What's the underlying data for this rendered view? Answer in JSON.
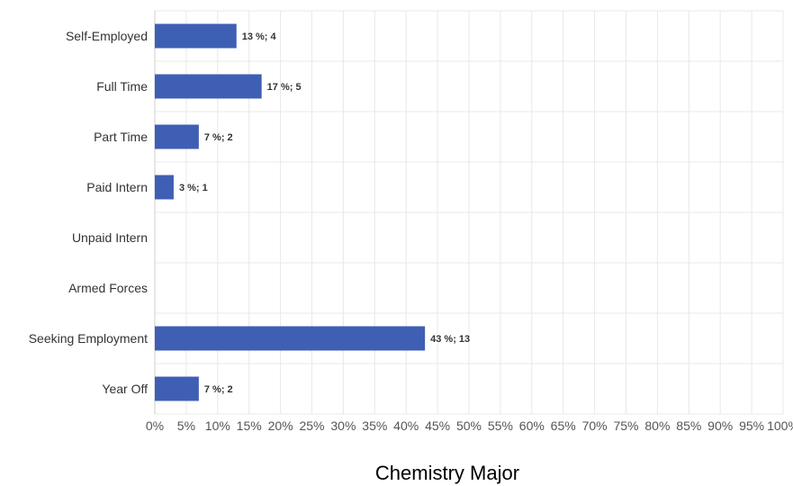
{
  "chart_data": {
    "type": "bar",
    "orientation": "horizontal",
    "title": "Chemistry Major",
    "categories": [
      "Self-Employed",
      "Full Time",
      "Part Time",
      "Paid Intern",
      "Unpaid Intern",
      "Armed Forces",
      "Seeking Employment",
      "Year Off"
    ],
    "values": [
      13,
      17,
      7,
      3,
      0,
      0,
      43,
      7
    ],
    "counts": [
      4,
      5,
      2,
      1,
      0,
      0,
      13,
      2
    ],
    "data_labels": [
      "13 %; 4",
      "17 %; 5",
      "7 %; 2",
      "3 %; 1",
      "",
      "",
      "43 %; 13",
      "7 %; 2"
    ],
    "xlim": [
      0,
      100
    ],
    "x_ticks": [
      "0%",
      "5%",
      "10%",
      "15%",
      "20%",
      "25%",
      "30%",
      "35%",
      "40%",
      "45%",
      "50%",
      "55%",
      "60%",
      "65%",
      "70%",
      "75%",
      "80%",
      "85%",
      "90%",
      "95%",
      "100%"
    ],
    "grid": true,
    "bar_color": "#3f5fb5"
  }
}
